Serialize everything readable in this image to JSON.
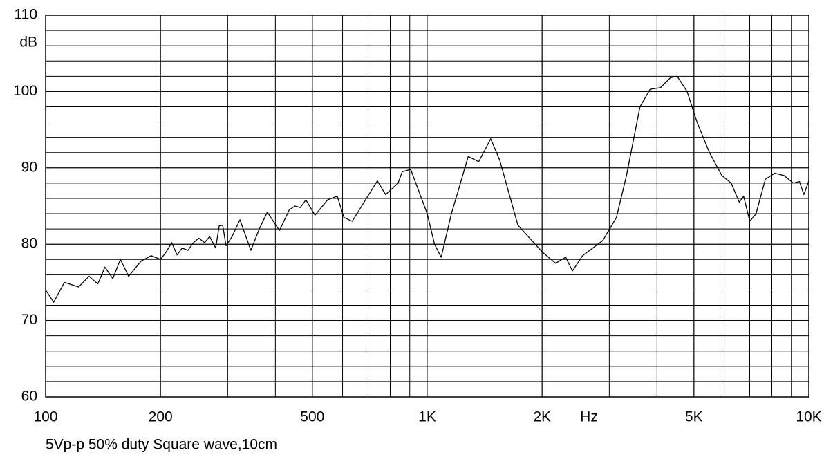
{
  "chart_data": {
    "type": "line",
    "y_label": "dB",
    "x_unit": "Hz",
    "caption": "5Vp-p 50% duty Square wave,10cm",
    "x": [
      100,
      105,
      112,
      122,
      130,
      137,
      143,
      150,
      157,
      165,
      178,
      189,
      200,
      207,
      214,
      221,
      228,
      236,
      244,
      252,
      261,
      269,
      279,
      285,
      291,
      297,
      308,
      323,
      345,
      363,
      381,
      410,
      435,
      450,
      465,
      481,
      508,
      548,
      581,
      605,
      636,
      740,
      778,
      839,
      860,
      905,
      1000,
      1045,
      1088,
      1157,
      1222,
      1281,
      1364,
      1467,
      1549,
      1728,
      2000,
      2170,
      2306,
      2402,
      2554,
      2716,
      2886,
      3132,
      3328,
      3610,
      3838,
      4084,
      4336,
      4518,
      4798,
      5094,
      5490,
      5917,
      6260,
      6574,
      6747,
      7004,
      7273,
      7693,
      8138,
      8609,
      9106,
      9454,
      9705,
      10000
    ],
    "values": [
      74,
      72.4,
      75,
      74.4,
      75.8,
      74.8,
      77,
      75.5,
      78,
      75.8,
      77.8,
      78.5,
      78,
      79,
      80.2,
      78.6,
      79.5,
      79.2,
      80.2,
      80.8,
      80.2,
      81,
      79.5,
      82.4,
      82.5,
      79.8,
      81,
      83.2,
      79.2,
      82,
      84.2,
      81.8,
      84.5,
      85,
      84.8,
      85.8,
      83.8,
      85.8,
      86.3,
      83.5,
      83,
      88.3,
      86.5,
      88,
      89.5,
      89.8,
      84,
      80,
      78.3,
      84,
      88,
      91.5,
      90.8,
      93.8,
      91,
      82.5,
      79,
      77.5,
      78.3,
      76.5,
      78.5,
      79.5,
      80.5,
      83.5,
      89,
      98,
      100.3,
      100.5,
      101.8,
      102,
      100,
      96,
      92,
      89,
      88,
      85.5,
      86.3,
      83,
      84,
      88.5,
      89.3,
      89,
      88,
      88.2,
      86.5,
      88.3
    ],
    "color": "#000000",
    "xlim": [
      100,
      10000
    ],
    "x_log": true,
    "xticks": [
      100,
      200,
      500,
      {
        "value": 1000,
        "label": "1K"
      },
      {
        "value": 2000,
        "label": "2K"
      },
      {
        "value": 5000,
        "label": "5K"
      },
      {
        "value": 10000,
        "label": "10K"
      }
    ],
    "ylim": [
      60,
      110
    ],
    "yticks": [
      60,
      70,
      80,
      90,
      100,
      110
    ],
    "grid": true,
    "y_minor_step": 2
  }
}
